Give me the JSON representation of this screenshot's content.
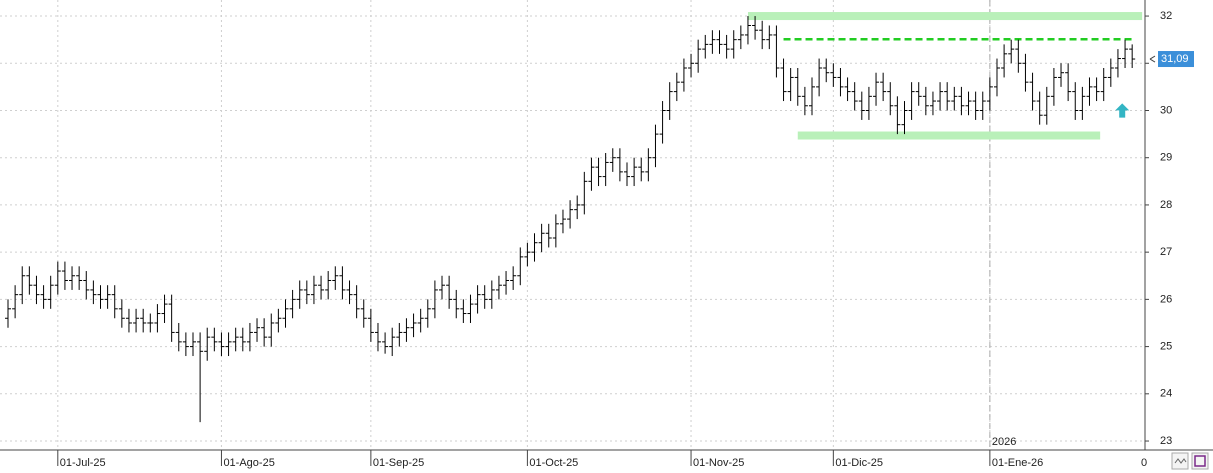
{
  "chart_data": {
    "type": "ohlc",
    "color": "#000000",
    "categories": [
      null,
      null,
      null,
      null,
      null,
      null,
      null,
      "01-Jul-25",
      null,
      null,
      null,
      null,
      null,
      null,
      null,
      null,
      null,
      null,
      null,
      null,
      null,
      null,
      null,
      null,
      null,
      null,
      null,
      null,
      null,
      null,
      "01-Ago-25",
      null,
      null,
      null,
      null,
      null,
      null,
      null,
      null,
      null,
      null,
      null,
      null,
      null,
      null,
      null,
      null,
      null,
      null,
      null,
      null,
      "01-Sep-25",
      null,
      null,
      null,
      null,
      null,
      null,
      null,
      null,
      null,
      null,
      null,
      null,
      null,
      null,
      null,
      null,
      null,
      null,
      null,
      null,
      null,
      "01-Oct-25",
      null,
      null,
      null,
      null,
      null,
      null,
      null,
      null,
      null,
      null,
      null,
      null,
      null,
      null,
      null,
      null,
      null,
      null,
      null,
      null,
      null,
      null,
      "01-Nov-25",
      null,
      null,
      null,
      null,
      null,
      null,
      null,
      null,
      null,
      null,
      null,
      null,
      null,
      null,
      null,
      null,
      null,
      null,
      null,
      "01-Dic-25",
      null,
      null,
      null,
      null,
      null,
      null,
      null,
      null,
      null,
      null,
      null,
      null,
      null,
      null,
      null,
      null,
      null,
      null,
      null,
      null,
      null,
      "01-Ene-26",
      null,
      null,
      null,
      null,
      null,
      null,
      null,
      null,
      null,
      null,
      null,
      null,
      null,
      null,
      null,
      null,
      null,
      null,
      null,
      null
    ],
    "open": [
      25.6,
      25.8,
      26.1,
      26.5,
      26.3,
      26.1,
      26.0,
      26.3,
      26.6,
      26.4,
      26.5,
      26.4,
      26.2,
      26.1,
      26.0,
      26.1,
      25.8,
      25.6,
      25.5,
      25.6,
      25.5,
      25.5,
      25.7,
      25.9,
      25.3,
      25.1,
      25.0,
      25.1,
      24.9,
      25.2,
      25.1,
      25.0,
      25.1,
      25.2,
      25.1,
      25.3,
      25.4,
      25.2,
      25.5,
      25.6,
      25.8,
      26.0,
      26.2,
      26.1,
      26.3,
      26.2,
      26.4,
      26.5,
      26.2,
      26.1,
      25.8,
      25.6,
      25.3,
      25.1,
      25.0,
      25.2,
      25.3,
      25.4,
      25.5,
      25.6,
      25.8,
      26.2,
      26.3,
      26.0,
      25.8,
      25.7,
      25.9,
      26.1,
      26.0,
      26.2,
      26.3,
      26.4,
      26.5,
      26.9,
      27.0,
      27.2,
      27.4,
      27.3,
      27.6,
      27.7,
      27.9,
      28.0,
      28.5,
      28.8,
      28.6,
      28.9,
      29.0,
      28.7,
      28.6,
      28.8,
      28.7,
      29.0,
      29.5,
      30.0,
      30.4,
      30.6,
      30.9,
      31.0,
      31.3,
      31.4,
      31.5,
      31.4,
      31.3,
      31.5,
      31.6,
      31.8,
      31.7,
      31.5,
      31.6,
      30.9,
      30.4,
      30.7,
      30.3,
      30.1,
      30.5,
      30.9,
      30.8,
      30.7,
      30.5,
      30.4,
      30.2,
      30.0,
      30.3,
      30.6,
      30.4,
      30.1,
      29.7,
      30.0,
      30.4,
      30.3,
      30.1,
      30.2,
      30.4,
      30.2,
      30.3,
      30.1,
      30.2,
      30.0,
      30.2,
      30.5,
      30.9,
      31.2,
      31.3,
      31.0,
      30.6,
      30.2,
      29.9,
      30.3,
      30.7,
      30.8,
      30.4,
      30.0,
      30.3,
      30.5,
      30.4,
      30.7,
      30.9,
      31.1,
      31.3
    ],
    "high": [
      26.0,
      26.3,
      26.7,
      26.7,
      26.5,
      26.3,
      26.5,
      26.8,
      26.8,
      26.7,
      26.7,
      26.6,
      26.4,
      26.3,
      26.3,
      26.3,
      26.0,
      25.8,
      25.8,
      25.8,
      25.7,
      25.9,
      26.1,
      26.1,
      25.5,
      25.3,
      25.3,
      25.3,
      25.4,
      25.4,
      25.3,
      25.3,
      25.4,
      25.4,
      25.5,
      25.6,
      25.6,
      25.7,
      25.8,
      26.0,
      26.2,
      26.4,
      26.4,
      26.5,
      26.5,
      26.6,
      26.7,
      26.7,
      26.4,
      26.3,
      26.0,
      25.8,
      25.5,
      25.3,
      25.4,
      25.5,
      25.6,
      25.7,
      25.8,
      26.0,
      26.4,
      26.5,
      26.5,
      26.2,
      26.0,
      26.1,
      26.3,
      26.3,
      26.4,
      26.5,
      26.6,
      26.7,
      27.1,
      27.2,
      27.4,
      27.6,
      27.6,
      27.8,
      27.9,
      28.1,
      28.2,
      28.7,
      29.0,
      29.0,
      29.1,
      29.2,
      29.2,
      28.9,
      29.0,
      29.0,
      29.2,
      29.7,
      30.2,
      30.6,
      30.8,
      31.1,
      31.2,
      31.5,
      31.6,
      31.7,
      31.7,
      31.6,
      31.7,
      31.8,
      32.0,
      32.0,
      31.9,
      31.8,
      31.8,
      31.1,
      30.9,
      30.9,
      30.5,
      30.7,
      31.1,
      31.1,
      31.0,
      30.9,
      30.7,
      30.6,
      30.4,
      30.5,
      30.8,
      30.8,
      30.6,
      30.3,
      30.2,
      30.6,
      30.6,
      30.5,
      30.4,
      30.6,
      30.6,
      30.5,
      30.5,
      30.4,
      30.4,
      30.4,
      30.7,
      31.1,
      31.4,
      31.5,
      31.5,
      31.2,
      30.8,
      30.4,
      30.5,
      30.9,
      31.0,
      31.0,
      30.6,
      30.5,
      30.7,
      30.7,
      30.9,
      31.1,
      31.3,
      31.5,
      31.4
    ],
    "low": [
      25.4,
      25.6,
      25.9,
      26.1,
      25.9,
      25.8,
      25.8,
      26.1,
      26.2,
      26.2,
      26.2,
      26.0,
      25.9,
      25.8,
      25.8,
      25.6,
      25.4,
      25.3,
      25.3,
      25.3,
      25.3,
      25.3,
      25.5,
      25.1,
      24.9,
      24.8,
      24.8,
      23.4,
      24.7,
      24.9,
      24.8,
      24.8,
      24.9,
      24.9,
      24.9,
      25.1,
      25.0,
      25.0,
      25.3,
      25.4,
      25.6,
      25.8,
      25.9,
      25.9,
      26.0,
      26.0,
      26.2,
      26.0,
      25.9,
      25.6,
      25.4,
      25.1,
      24.9,
      24.85,
      24.8,
      25.0,
      25.1,
      25.2,
      25.3,
      25.4,
      25.6,
      26.0,
      25.8,
      25.6,
      25.5,
      25.5,
      25.7,
      25.8,
      25.8,
      26.0,
      26.1,
      26.2,
      26.3,
      26.7,
      26.8,
      27.0,
      27.1,
      27.1,
      27.4,
      27.5,
      27.7,
      27.8,
      28.3,
      28.4,
      28.4,
      28.7,
      28.5,
      28.4,
      28.4,
      28.5,
      28.5,
      28.8,
      29.3,
      29.8,
      30.2,
      30.4,
      30.7,
      30.8,
      31.1,
      31.2,
      31.2,
      31.1,
      31.1,
      31.3,
      31.4,
      31.5,
      31.3,
      31.3,
      30.7,
      30.2,
      30.2,
      30.1,
      29.9,
      29.9,
      30.3,
      30.6,
      30.5,
      30.3,
      30.2,
      30.0,
      29.8,
      29.8,
      30.1,
      30.2,
      29.9,
      29.5,
      29.5,
      29.8,
      30.1,
      29.9,
      29.9,
      30.0,
      30.0,
      30.0,
      29.9,
      29.9,
      29.8,
      29.8,
      30.0,
      30.3,
      30.7,
      31.0,
      30.8,
      30.4,
      30.0,
      29.7,
      29.7,
      30.1,
      30.5,
      30.2,
      29.8,
      29.8,
      30.1,
      30.2,
      30.2,
      30.5,
      30.7,
      30.9,
      30.9
    ],
    "close": [
      25.8,
      26.1,
      26.5,
      26.3,
      26.1,
      26.0,
      26.3,
      26.6,
      26.4,
      26.5,
      26.4,
      26.2,
      26.1,
      26.0,
      26.1,
      25.8,
      25.6,
      25.5,
      25.6,
      25.5,
      25.5,
      25.7,
      25.9,
      25.3,
      25.1,
      25.0,
      25.1,
      24.9,
      25.2,
      25.1,
      25.0,
      25.1,
      25.2,
      25.1,
      25.3,
      25.4,
      25.2,
      25.5,
      25.6,
      25.8,
      26.0,
      26.2,
      26.1,
      26.3,
      26.2,
      26.4,
      26.5,
      26.2,
      26.1,
      25.8,
      25.6,
      25.3,
      25.1,
      25.0,
      25.2,
      25.3,
      25.4,
      25.5,
      25.6,
      25.8,
      26.2,
      26.3,
      26.0,
      25.8,
      25.7,
      25.9,
      26.1,
      26.0,
      26.2,
      26.3,
      26.4,
      26.5,
      26.9,
      27.0,
      27.2,
      27.4,
      27.3,
      27.6,
      27.7,
      27.9,
      28.0,
      28.5,
      28.8,
      28.6,
      28.9,
      29.0,
      28.7,
      28.6,
      28.8,
      28.7,
      29.0,
      29.5,
      30.0,
      30.4,
      30.6,
      30.9,
      31.0,
      31.3,
      31.4,
      31.5,
      31.4,
      31.3,
      31.5,
      31.6,
      31.8,
      31.7,
      31.5,
      31.6,
      30.9,
      30.4,
      30.7,
      30.3,
      30.1,
      30.5,
      30.9,
      30.8,
      30.7,
      30.5,
      30.4,
      30.2,
      30.0,
      30.3,
      30.6,
      30.4,
      30.1,
      29.7,
      30.0,
      30.4,
      30.3,
      30.1,
      30.2,
      30.4,
      30.2,
      30.3,
      30.1,
      30.2,
      30.0,
      30.2,
      30.5,
      30.9,
      31.2,
      31.3,
      31.0,
      30.6,
      30.2,
      29.9,
      30.3,
      30.7,
      30.8,
      30.4,
      30.0,
      30.3,
      30.5,
      30.4,
      30.7,
      30.9,
      31.1,
      31.3,
      31.09
    ],
    "ylim": [
      22.81,
      32.34
    ],
    "yticks": [
      23,
      24,
      25,
      26,
      27,
      28,
      29,
      30,
      31,
      32
    ],
    "grid": true,
    "last_price": {
      "value": 31.09,
      "label": "31,09",
      "color": "#3b8fd9"
    },
    "year_marker": {
      "label": "2026",
      "at": 138
    },
    "x_label_clipped": "0",
    "bands": [
      {
        "y": 32.0,
        "from": 104,
        "to": 159.4,
        "color": "#b9f0b9"
      },
      {
        "y": 29.47,
        "from": 111,
        "to": 153.5,
        "color": "#b9f0b9"
      }
    ],
    "dashed_line": {
      "y": 31.51,
      "from": 109,
      "to": 158.4,
      "color": "#22cc22"
    },
    "arrow": {
      "at": 156.6,
      "from": 29.85,
      "to": 30.15,
      "color": "#33b5c4"
    }
  }
}
